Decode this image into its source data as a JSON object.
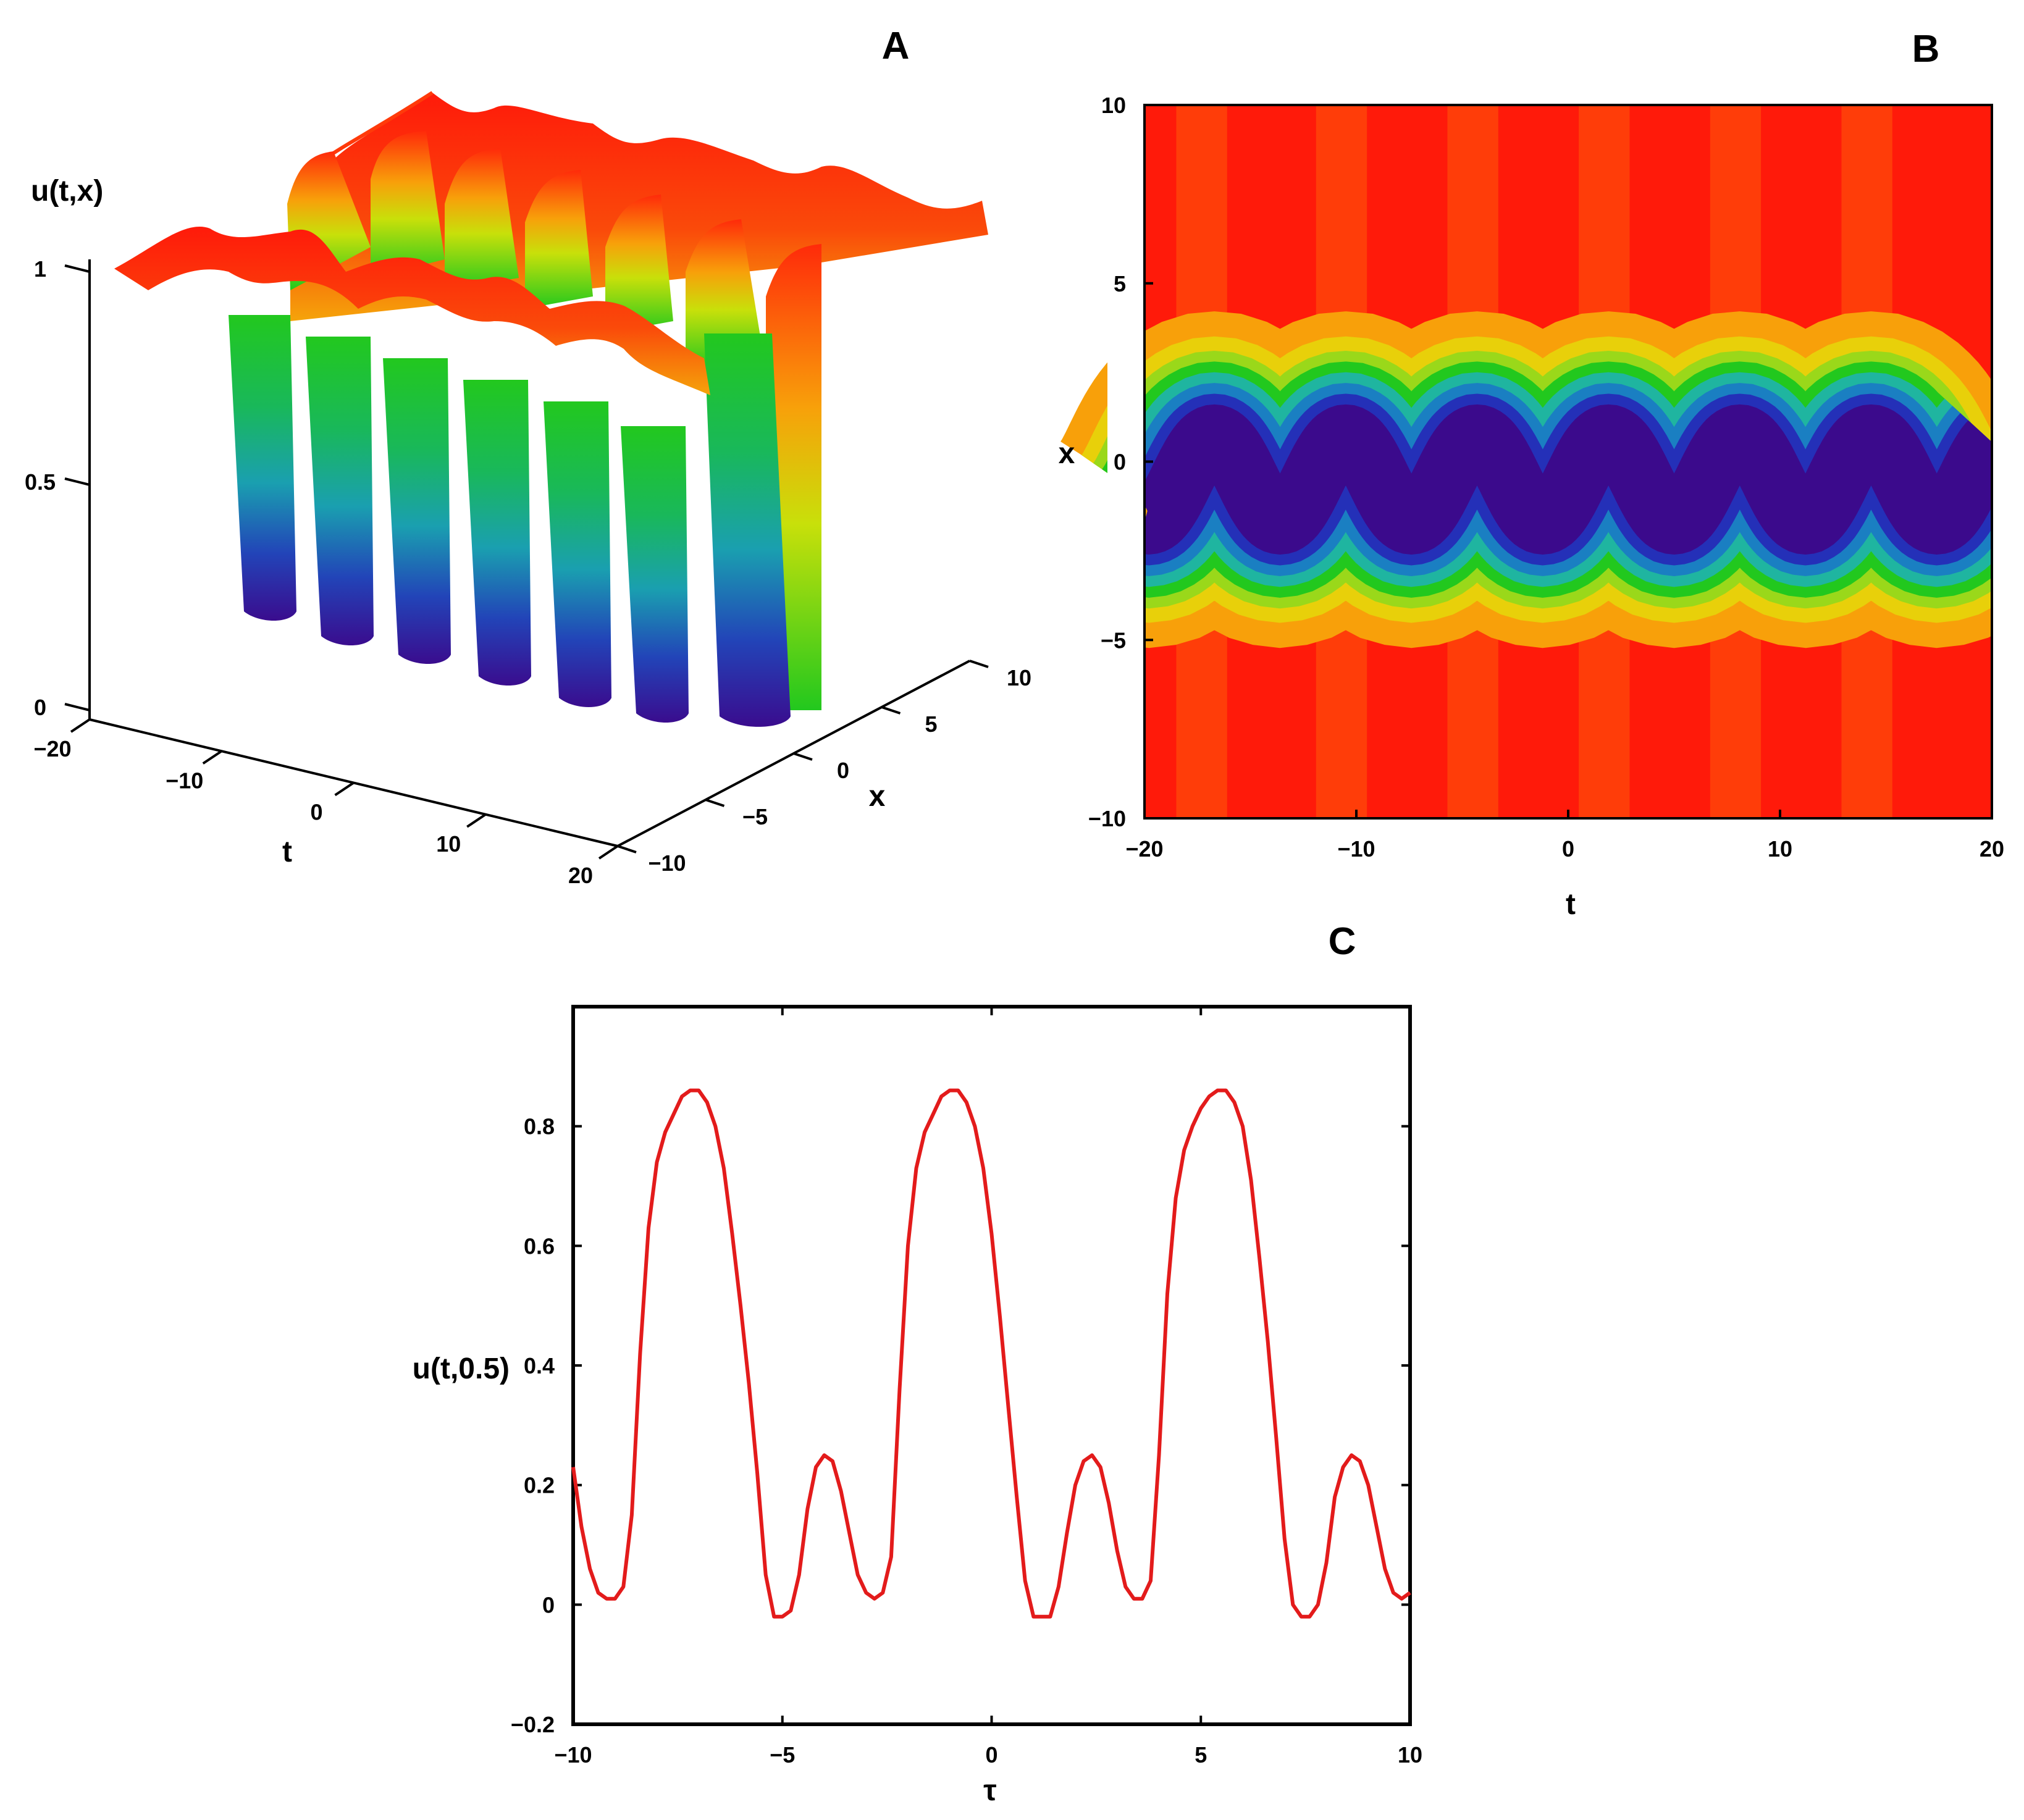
{
  "panels": {
    "A": {
      "letter": "A"
    },
    "B": {
      "letter": "B"
    },
    "C": {
      "letter": "C"
    }
  },
  "colors": {
    "surface_palette": [
      "#3b0a8c",
      "#2430b8",
      "#1a7fc2",
      "#1fb5a0",
      "#22c81e",
      "#c8e00a",
      "#f5a40a",
      "#fa5a0a",
      "#ff1a0a"
    ],
    "line": "#e31b1b"
  },
  "chart_data": [
    {
      "panel": "A",
      "type": "surface3d",
      "zlabel": "u(t,x)",
      "tlabel": "t",
      "xlabel": "x",
      "t_ticks": [
        "−20",
        "−10",
        "0",
        "10",
        "20"
      ],
      "x_ticks": [
        "−10",
        "−5",
        "0",
        "5",
        "10"
      ],
      "z_ticks": [
        "0",
        "0.5",
        "1"
      ],
      "t_range": [
        -20,
        20
      ],
      "x_range": [
        -10,
        10
      ],
      "z_range": [
        0,
        1
      ],
      "trough_centers_t": [
        -16.4,
        -10.2,
        -4.0,
        2.2,
        8.4,
        14.6
      ],
      "trough_min_u": 0.02,
      "plateau_u": 0.9
    },
    {
      "panel": "B",
      "type": "heatmap",
      "xlabel": "t",
      "ylabel": "x",
      "xlim": [
        -20,
        20
      ],
      "ylim": [
        -10,
        10
      ],
      "x_ticks": [
        "−20",
        "−10",
        "0",
        "10",
        "20"
      ],
      "y_ticks": [
        "−10",
        "−5",
        "0",
        "5",
        "10"
      ],
      "valley_center_x_peaks_t": [
        -16.7,
        -10.1,
        -3.9,
        2.3,
        8.5,
        14.7
      ],
      "valley_amplitude_x": 1.2,
      "valley_mean_x": -0.5,
      "background": "red"
    },
    {
      "panel": "C",
      "type": "line",
      "xlabel": "τ",
      "ylabel": "u(t,0.5)",
      "xlim": [
        -10,
        10
      ],
      "ylim": [
        -0.2,
        1.0
      ],
      "x_ticks": [
        "−10",
        "−5",
        "0",
        "5",
        "10"
      ],
      "y_ticks": [
        "−0.2",
        "0",
        "0.2",
        "0.4",
        "0.6",
        "0.8"
      ],
      "x_tick_values": [
        -10,
        -5,
        0,
        5,
        10
      ],
      "y_tick_values": [
        -0.2,
        0,
        0.2,
        0.4,
        0.6,
        0.8
      ],
      "points": [
        [
          -10.0,
          0.23
        ],
        [
          -9.8,
          0.13
        ],
        [
          -9.6,
          0.06
        ],
        [
          -9.4,
          0.02
        ],
        [
          -9.2,
          0.01
        ],
        [
          -9.0,
          0.01
        ],
        [
          -8.8,
          0.03
        ],
        [
          -8.6,
          0.15
        ],
        [
          -8.4,
          0.42
        ],
        [
          -8.2,
          0.63
        ],
        [
          -8.0,
          0.74
        ],
        [
          -7.8,
          0.79
        ],
        [
          -7.6,
          0.82
        ],
        [
          -7.4,
          0.85
        ],
        [
          -7.2,
          0.86
        ],
        [
          -7.0,
          0.86
        ],
        [
          -6.8,
          0.84
        ],
        [
          -6.6,
          0.8
        ],
        [
          -6.4,
          0.73
        ],
        [
          -6.2,
          0.62
        ],
        [
          -6.0,
          0.5
        ],
        [
          -5.8,
          0.37
        ],
        [
          -5.6,
          0.22
        ],
        [
          -5.4,
          0.05
        ],
        [
          -5.2,
          -0.02
        ],
        [
          -5.0,
          -0.02
        ],
        [
          -4.8,
          -0.01
        ],
        [
          -4.6,
          0.05
        ],
        [
          -4.4,
          0.16
        ],
        [
          -4.2,
          0.23
        ],
        [
          -4.0,
          0.25
        ],
        [
          -3.8,
          0.24
        ],
        [
          -3.6,
          0.19
        ],
        [
          -3.4,
          0.12
        ],
        [
          -3.2,
          0.05
        ],
        [
          -3.0,
          0.02
        ],
        [
          -2.8,
          0.01
        ],
        [
          -2.6,
          0.02
        ],
        [
          -2.4,
          0.08
        ],
        [
          -2.2,
          0.36
        ],
        [
          -2.0,
          0.6
        ],
        [
          -1.8,
          0.73
        ],
        [
          -1.6,
          0.79
        ],
        [
          -1.4,
          0.82
        ],
        [
          -1.2,
          0.85
        ],
        [
          -1.0,
          0.86
        ],
        [
          -0.8,
          0.86
        ],
        [
          -0.6,
          0.84
        ],
        [
          -0.4,
          0.8
        ],
        [
          -0.2,
          0.73
        ],
        [
          0.0,
          0.62
        ],
        [
          0.2,
          0.48
        ],
        [
          0.4,
          0.33
        ],
        [
          0.6,
          0.18
        ],
        [
          0.8,
          0.04
        ],
        [
          1.0,
          -0.02
        ],
        [
          1.2,
          -0.02
        ],
        [
          1.4,
          -0.02
        ],
        [
          1.6,
          0.03
        ],
        [
          1.8,
          0.12
        ],
        [
          2.0,
          0.2
        ],
        [
          2.2,
          0.24
        ],
        [
          2.4,
          0.25
        ],
        [
          2.6,
          0.23
        ],
        [
          2.8,
          0.17
        ],
        [
          3.0,
          0.09
        ],
        [
          3.2,
          0.03
        ],
        [
          3.4,
          0.01
        ],
        [
          3.6,
          0.01
        ],
        [
          3.8,
          0.04
        ],
        [
          4.0,
          0.25
        ],
        [
          4.2,
          0.52
        ],
        [
          4.4,
          0.68
        ],
        [
          4.6,
          0.76
        ],
        [
          4.8,
          0.8
        ],
        [
          5.0,
          0.83
        ],
        [
          5.2,
          0.85
        ],
        [
          5.4,
          0.86
        ],
        [
          5.6,
          0.86
        ],
        [
          5.8,
          0.84
        ],
        [
          6.0,
          0.8
        ],
        [
          6.2,
          0.71
        ],
        [
          6.4,
          0.58
        ],
        [
          6.6,
          0.44
        ],
        [
          6.8,
          0.28
        ],
        [
          7.0,
          0.11
        ],
        [
          7.2,
          0.0
        ],
        [
          7.4,
          -0.02
        ],
        [
          7.6,
          -0.02
        ],
        [
          7.8,
          0.0
        ],
        [
          8.0,
          0.07
        ],
        [
          8.2,
          0.18
        ],
        [
          8.4,
          0.23
        ],
        [
          8.6,
          0.25
        ],
        [
          8.8,
          0.24
        ],
        [
          9.0,
          0.2
        ],
        [
          9.2,
          0.13
        ],
        [
          9.4,
          0.06
        ],
        [
          9.6,
          0.02
        ],
        [
          9.8,
          0.01
        ],
        [
          10.0,
          0.02
        ]
      ]
    }
  ]
}
